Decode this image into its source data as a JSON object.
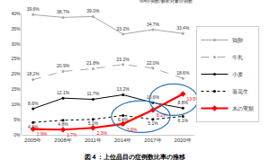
{
  "chart_data": {
    "type": "line",
    "title": "図４：上位品目の症例数比率の推移",
    "annotation": "%=症例数/解析対象症例数",
    "categories": [
      "2005年",
      "2008年",
      "2011年",
      "2014年",
      "2017年",
      "2020年"
    ],
    "ylim": [
      0,
      40
    ],
    "yticks": [
      {
        "value": 0,
        "label": "0%"
      },
      {
        "value": 5,
        "label": "5%"
      },
      {
        "value": 10,
        "label": "10%"
      },
      {
        "value": 15,
        "label": "15%"
      },
      {
        "value": 20,
        "label": "20%"
      },
      {
        "value": 25,
        "label": "25%"
      },
      {
        "value": 30,
        "label": "30%"
      },
      {
        "value": 35,
        "label": "35%"
      },
      {
        "value": 40,
        "label": "40%"
      }
    ],
    "grid": false,
    "legend": "right",
    "data_labels": true,
    "series": [
      {
        "name": "鶏卵",
        "color": "#a6a6a6",
        "line_style": "solid",
        "marker": "circle",
        "values": [
          39.6,
          38.7,
          39.0,
          33.2,
          34.7,
          33.4
        ],
        "value_labels": [
          "39.6%",
          "38.7%",
          "39.0%",
          "33.2%",
          "34.7%",
          "33.4%"
        ]
      },
      {
        "name": "牛乳",
        "color": "#a6a6a6",
        "line_style": "dash",
        "marker": "circle",
        "values": [
          18.2,
          20.9,
          21.8,
          23.2,
          22.0,
          18.6
        ],
        "value_labels": [
          "18.2%",
          "20.9%",
          "21.8%",
          "23.2%",
          "22.0%",
          "18.6%"
        ]
      },
      {
        "name": "小麦",
        "color": "#000000",
        "line_style": "solid",
        "marker": "circle",
        "values": [
          8.6,
          12.1,
          11.7,
          13.2,
          10.6,
          8.8
        ],
        "value_labels": [
          "8.6%",
          "12.1%",
          "11.7%",
          "13.2%",
          "10.6%",
          "8.8%"
        ]
      },
      {
        "name": "落花生",
        "color": "#000000",
        "line_style": "dot",
        "marker": "circle",
        "values": [
          4.1,
          4.8,
          5.1,
          6.4,
          5.1,
          6.1
        ],
        "value_labels": [
          "4.1%",
          "4.8%",
          "5.1%",
          "6.4%",
          "5.1%",
          "6.1%"
        ]
      },
      {
        "name": "木の実類",
        "color": "#ff0000",
        "line_style": "solid",
        "marker": "diamond",
        "values": [
          1.9,
          1.7,
          2.3,
          3.6,
          8.2,
          13.5
        ],
        "value_labels": [
          "1.9%",
          "1.7%",
          "2.3%",
          "3.6%",
          "8.2%",
          "13.5%"
        ]
      }
    ]
  }
}
